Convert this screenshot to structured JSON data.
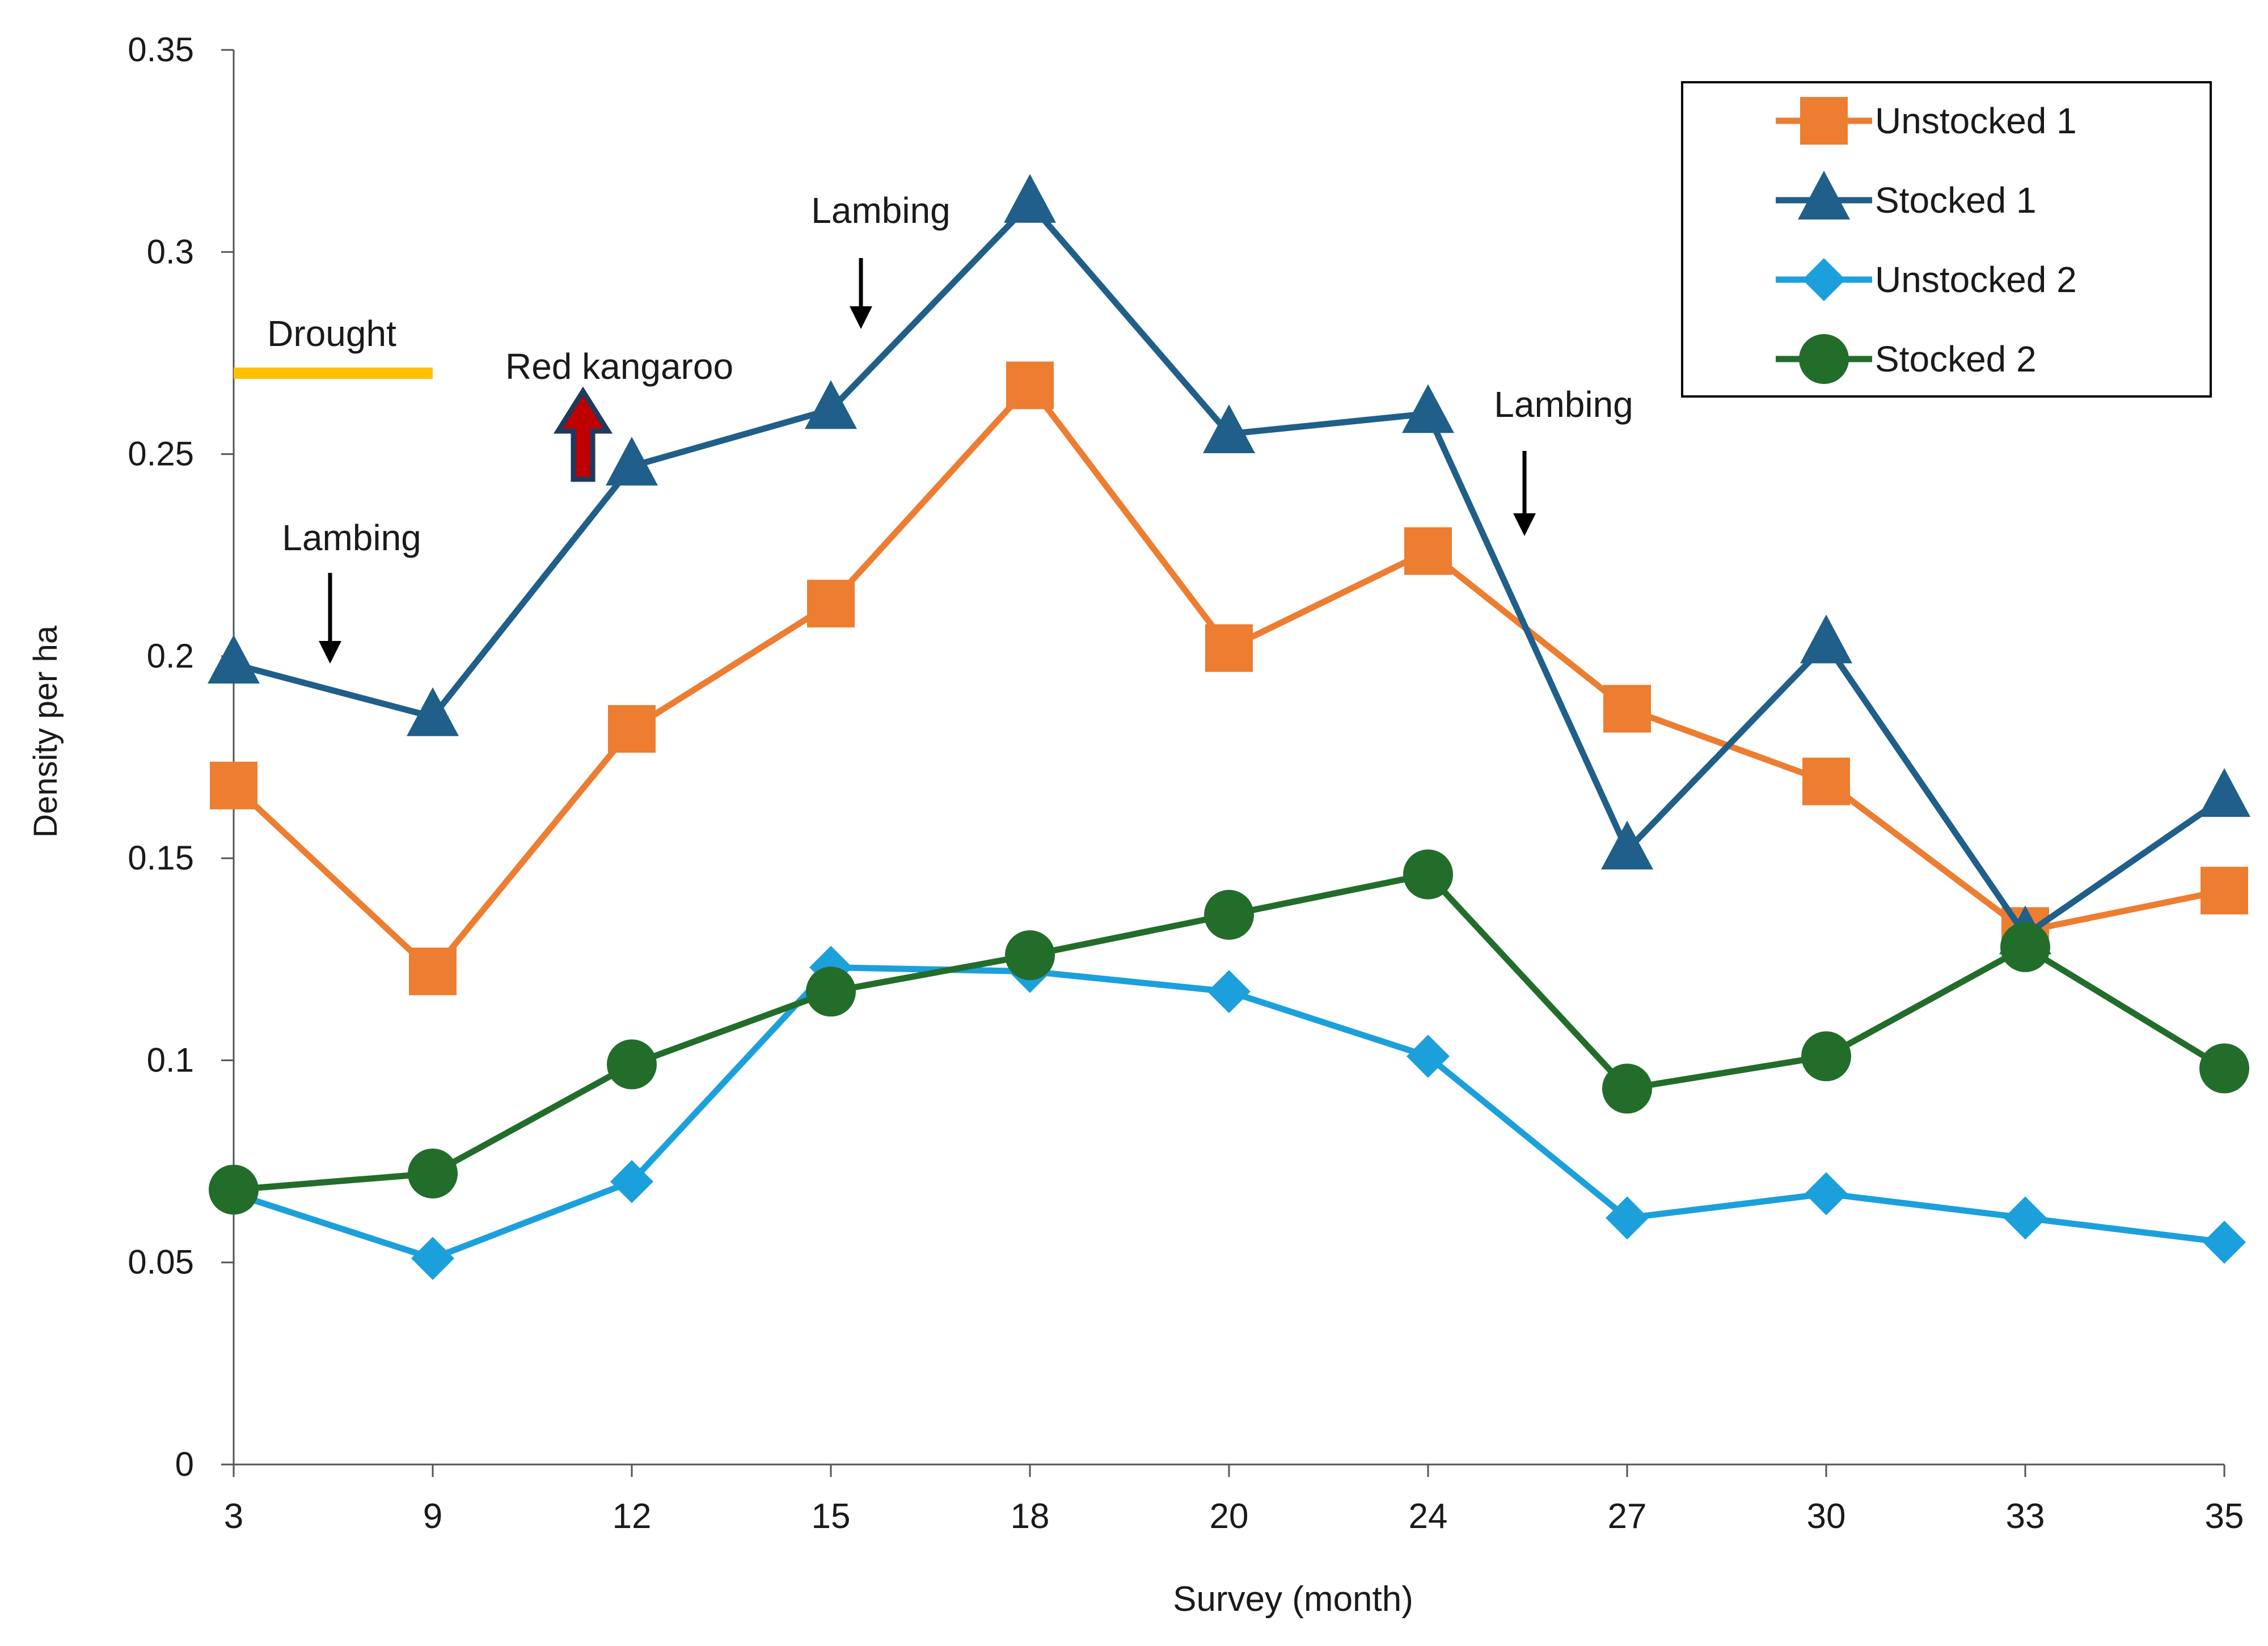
{
  "chart_data": {
    "type": "line",
    "title": "",
    "xlabel": "Survey (month)",
    "ylabel": "Density per ha",
    "categories": [
      "3",
      "9",
      "12",
      "15",
      "18",
      "20",
      "24",
      "27",
      "30",
      "33",
      "35"
    ],
    "ylim": [
      0,
      0.35
    ],
    "yticks": [
      0,
      0.05,
      0.1,
      0.15,
      0.2,
      0.25,
      0.3,
      0.35
    ],
    "ytick_labels": [
      "0",
      "0.05",
      "0.1",
      "0.15",
      "0.2",
      "0.25",
      "0.3",
      "0.35"
    ],
    "grid": false,
    "legend_position": "top-right",
    "series": [
      {
        "name": "Unstocked 1",
        "color": "#ED7D31",
        "marker": "square",
        "values": [
          0.168,
          0.122,
          0.182,
          0.213,
          0.267,
          0.202,
          0.226,
          0.187,
          0.169,
          0.132,
          0.142
        ]
      },
      {
        "name": "Stocked 1",
        "color": "#1F5F89",
        "marker": "triangle",
        "values": [
          0.198,
          0.185,
          0.247,
          0.261,
          0.312,
          0.255,
          0.26,
          0.152,
          0.203,
          0.131,
          0.165
        ]
      },
      {
        "name": "Unstocked 2",
        "color": "#1CA0DC",
        "marker": "diamond",
        "values": [
          0.067,
          0.051,
          0.07,
          0.123,
          0.122,
          0.117,
          0.101,
          0.061,
          0.067,
          0.061,
          0.055
        ]
      },
      {
        "name": "Stocked 2",
        "color": "#236D2B",
        "marker": "circle",
        "values": [
          0.068,
          0.072,
          0.099,
          0.117,
          0.126,
          0.136,
          0.146,
          0.093,
          0.101,
          0.128,
          0.098
        ]
      }
    ],
    "annotations": {
      "drought": {
        "label": "Drought",
        "from": "3",
        "to": "9",
        "level": 0.27,
        "color": "#FFC000"
      },
      "red_kangaroo": {
        "label": "Red kangaroo",
        "color": "#C00000"
      },
      "lambing": {
        "label": "Lambing",
        "arrow": "down"
      }
    }
  }
}
